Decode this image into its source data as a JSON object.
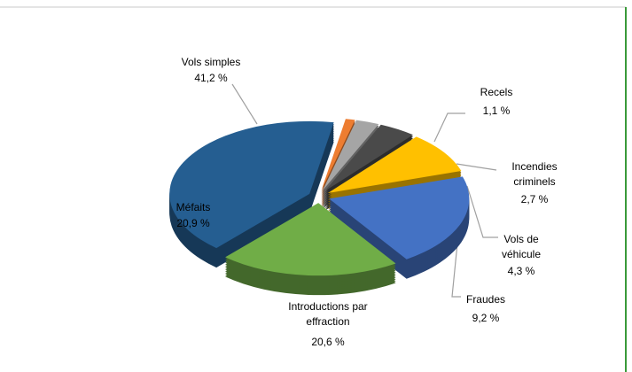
{
  "chart_data": {
    "type": "pie",
    "categories": [
      "Recels",
      "Incendies criminels",
      "Vols de véhicule",
      "Fraudes",
      "Introductions par effraction",
      "Méfaits",
      "Vols simples"
    ],
    "values": [
      1.1,
      2.7,
      4.3,
      9.2,
      20.6,
      20.9,
      41.2
    ],
    "value_labels": [
      "1,1 %",
      "2,7 %",
      "4,3 %",
      "9,2 %",
      "20,6 %",
      "20,9 %",
      "41,2 %"
    ],
    "colors": [
      "#ed7d31",
      "#a5a5a5",
      "#4a4a4a",
      "#ffc000",
      "#4472c4",
      "#70ad47",
      "#255e91"
    ]
  }
}
